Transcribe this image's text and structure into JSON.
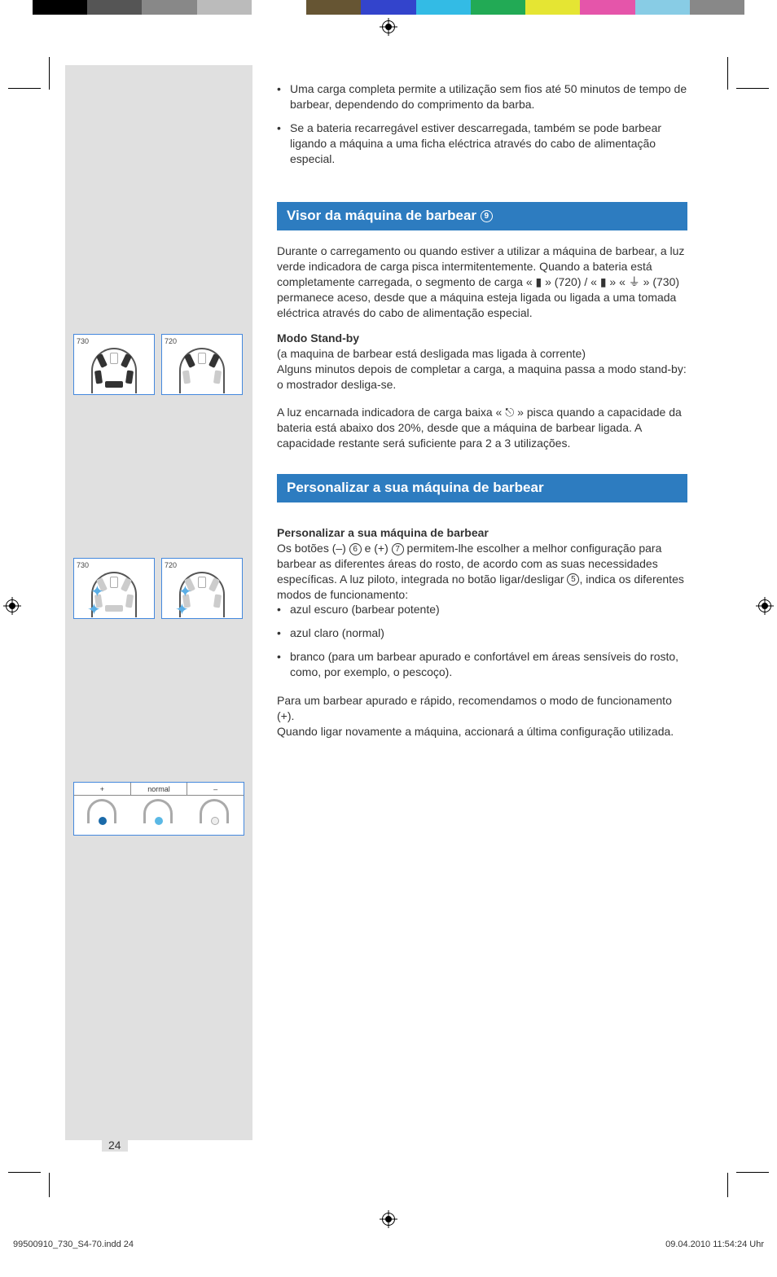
{
  "colorbar": [
    "#000000",
    "#555555",
    "#888888",
    "#bbbbbb",
    "#ffffff",
    "#665533",
    "#3344cc",
    "#33bbe5",
    "#22aa55",
    "#e5e533",
    "#e555aa",
    "#88cce5",
    "#888888"
  ],
  "bullets_top": [
    "Uma carga completa permite a utilização sem fios até 50 minutos de tempo de barbear, dependendo do comprimento da barba.",
    "Se a bateria recarregável estiver descarregada, também se pode barbear ligando a máquina a uma ficha eléctrica através do cabo de alimentação especial."
  ],
  "section1_title": "Visor da máquina de barbear",
  "section1_num": "9",
  "p1": "Durante o carregamento ou quando estiver a utilizar a máquina de barbear, a luz verde indicadora de carga pisca intermitentemente. Quando a bateria está completamente carregada, o segmento de carga « ▮ » (720) / « ▮ » « ⏚ » (730) permanece aceso, desde que a máquina esteja ligada ou ligada a uma tomada eléctrica através do cabo de alimentação especial.",
  "standby_head": "Modo Stand-by",
  "standby_p1": "(a maquina de barbear está desligada mas ligada à corrente)",
  "standby_p2": "Alguns minutos depois de completar a carga, a maquina passa a modo stand-by: o mostrador desliga-se.",
  "p2": "A luz encarnada indicadora de carga baixa « ⎋ » pisca quando a capacidade da bateria está abaixo dos 20%, desde que a máquina de barbear ligada. A capacidade restante será suficiente para 2 a 3 utilizações.",
  "section2_title": "Personalizar a sua máquina de barbear",
  "pers_head": "Personalizar a sua máquina de barbear",
  "pers_intro_a": "Os botões (–) ",
  "pers_intro_6": "6",
  "pers_intro_b": " e (+) ",
  "pers_intro_7": "7",
  "pers_intro_c": " permitem-lhe escolher a melhor configuração para barbear as diferentes áreas do rosto, de acordo com as suas necessidades específicas. A luz piloto, integrada no botão ligar/desligar ",
  "pers_intro_5": "5",
  "pers_intro_d": ", indica os diferentes modos de funcionamento:",
  "mode_bullets": [
    "azul escuro (barbear potente)",
    "azul claro (normal)",
    "branco (para um barbear apurado e confortável em áreas sensíveis do rosto, como, por exemplo, o pescoço)."
  ],
  "pers_p2": "Para um barbear apurado e rápido, recomendamos o modo de funcionamento (+).",
  "pers_p3": "Quando ligar novamente a máquina, accionará a última configuração utilizada.",
  "diag_730": "730",
  "diag_720": "720",
  "mode_plus": "+",
  "mode_normal": "normal",
  "mode_minus": "–",
  "mode_colors": {
    "dark": "#1b6aa9",
    "light": "#5ab8e5",
    "white": "#eeeeee"
  },
  "page_number": "24",
  "footer_left": "99500910_730_S4-70.indd   24",
  "footer_right": "09.04.2010   11:54:24 Uhr"
}
